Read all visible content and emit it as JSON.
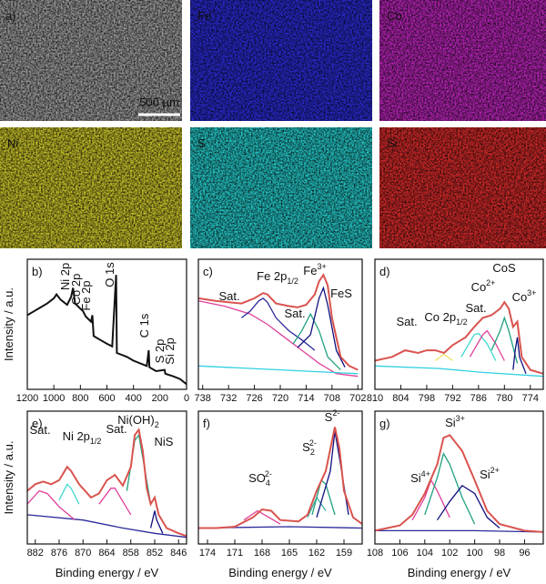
{
  "figure": {
    "panel": "a)",
    "scale_bar": "500 µm",
    "maps": [
      {
        "label": null,
        "color": "#9a9a9a"
      },
      {
        "label": "Fe",
        "color": "#2a2ad0"
      },
      {
        "label": "Co",
        "color": "#b524b5"
      },
      {
        "label": "Ni",
        "color": "#c9c22a"
      },
      {
        "label": "S",
        "color": "#25c4c4"
      },
      {
        "label": "Si",
        "color": "#d42a2a"
      }
    ]
  },
  "chart_data": [
    {
      "type": "line",
      "panel": "b)",
      "ylabel": "Intensity / a.u.",
      "xlim": [
        1200,
        0
      ],
      "ylim": [
        0,
        100
      ],
      "xticks": [
        1200,
        1000,
        800,
        600,
        400,
        200,
        0
      ],
      "annotations": [
        {
          "text": "Ni 2p"
        },
        {
          "text": "Co 2p"
        },
        {
          "text": "Fe 2p"
        },
        {
          "text": "O 1s"
        },
        {
          "text": "C 1s"
        },
        {
          "text": "S 2p"
        },
        {
          "text": "Si 2p"
        }
      ],
      "series": [
        {
          "color": "#111111",
          "x": [
            1200,
            1150,
            1100,
            1050,
            1000,
            980,
            950,
            900,
            870,
            855,
            840,
            800,
            780,
            760,
            720,
            710,
            700,
            650,
            600,
            560,
            531,
            525,
            450,
            400,
            300,
            285,
            280,
            230,
            165,
            160,
            100,
            50,
            0
          ],
          "values": [
            57,
            60,
            63,
            66,
            70,
            73,
            69,
            65,
            71,
            78,
            66,
            62,
            60,
            56,
            52,
            57,
            41,
            38,
            35,
            33,
            88,
            28,
            25,
            22,
            18,
            30,
            17,
            14,
            15,
            12,
            10,
            8,
            4
          ]
        }
      ]
    },
    {
      "type": "line",
      "panel": "c)",
      "xlim": [
        739,
        701
      ],
      "ylim": [
        0,
        100
      ],
      "xticks": [
        738,
        732,
        726,
        720,
        714,
        708,
        702
      ],
      "annotations": [
        {
          "text": "Sat."
        },
        {
          "text": "Fe 2p",
          "sub": "1/2"
        },
        {
          "text": "Sat."
        },
        {
          "text": "Fe",
          "sup": "3+"
        },
        {
          "text": "FeS"
        }
      ],
      "series": [
        {
          "color": "#e0409a",
          "x": [
            739,
            733,
            727,
            723,
            719,
            715,
            711,
            707,
            702
          ],
          "values": [
            68,
            64,
            58,
            50,
            40,
            30,
            20,
            12,
            10
          ]
        },
        {
          "color": "#30d0e0",
          "x": [
            739,
            720,
            702
          ],
          "values": [
            18,
            15,
            12
          ]
        },
        {
          "color": "#2a2a9a",
          "x": [
            729,
            727,
            725,
            724,
            723,
            721,
            718,
            715,
            712
          ],
          "values": [
            55,
            60,
            68,
            70,
            67,
            55,
            45,
            38,
            30
          ]
        },
        {
          "color": "#20a080",
          "x": [
            717,
            715,
            713,
            711,
            709,
            706
          ],
          "values": [
            35,
            45,
            58,
            45,
            25,
            15
          ]
        },
        {
          "color": "#101080",
          "x": [
            716,
            713,
            711,
            710,
            709,
            707,
            705
          ],
          "values": [
            32,
            42,
            70,
            78,
            65,
            30,
            17
          ]
        },
        {
          "color": "#d9534f",
          "x": [
            739,
            735,
            732,
            729,
            726,
            724,
            723,
            721,
            718,
            716,
            714,
            712,
            711,
            710,
            709,
            708,
            706,
            704,
            702
          ],
          "values": [
            70,
            68,
            67,
            66,
            70,
            74,
            73,
            66,
            64,
            63,
            65,
            73,
            83,
            88,
            80,
            55,
            25,
            18,
            15
          ]
        }
      ]
    },
    {
      "type": "line",
      "panel": "d)",
      "xlim": [
        810,
        771
      ],
      "ylim": [
        0,
        100
      ],
      "xticks": [
        810,
        804,
        798,
        792,
        786,
        780,
        774
      ],
      "annotations": [
        {
          "text": "Sat."
        },
        {
          "text": "Co 2p",
          "sub": "1/2"
        },
        {
          "text": "Sat."
        },
        {
          "text": "Co",
          "sup": "2+"
        },
        {
          "text": "CoS"
        },
        {
          "text": "Co",
          "sup": "3+"
        }
      ],
      "series": [
        {
          "color": "#30d0e0",
          "x": [
            810,
            795,
            785,
            771
          ],
          "values": [
            18,
            16,
            13,
            10
          ]
        },
        {
          "color": "#f0e060",
          "x": [
            796,
            794,
            792
          ],
          "values": [
            22,
            27,
            22
          ]
        },
        {
          "color": "#40d8d0",
          "x": [
            790,
            787,
            786,
            784,
            782
          ],
          "values": [
            25,
            42,
            43,
            35,
            22
          ]
        },
        {
          "color": "#e0409a",
          "x": [
            788,
            785,
            784,
            782,
            780
          ],
          "values": [
            25,
            42,
            45,
            35,
            22
          ]
        },
        {
          "color": "#20a080",
          "x": [
            783,
            781,
            780,
            779,
            777
          ],
          "values": [
            30,
            45,
            55,
            45,
            20
          ]
        },
        {
          "color": "#101080",
          "x": [
            778,
            777.5,
            777,
            776.5,
            775
          ],
          "values": [
            15,
            30,
            40,
            25,
            12
          ]
        },
        {
          "color": "#d9534f",
          "x": [
            810,
            806,
            803,
            800,
            798,
            796,
            794,
            792,
            789,
            787,
            785,
            783,
            781,
            780,
            779,
            778,
            777,
            776,
            774,
            771
          ],
          "values": [
            22,
            25,
            30,
            28,
            30,
            30,
            28,
            34,
            40,
            48,
            55,
            57,
            62,
            67,
            62,
            48,
            52,
            25,
            15,
            12
          ]
        }
      ]
    },
    {
      "type": "line",
      "panel": "e)",
      "xlabel": "Binding energy / eV",
      "ylabel": "Intensity / a.u.",
      "xlim": [
        884,
        844
      ],
      "ylim": [
        0,
        100
      ],
      "xticks": [
        882,
        876,
        870,
        864,
        858,
        852,
        846
      ],
      "annotations": [
        {
          "text": "Sat."
        },
        {
          "text": "Ni 2p",
          "sub": "1/2"
        },
        {
          "text": "Sat."
        },
        {
          "text": "Ni(OH)",
          "sub": "2"
        },
        {
          "text": "NiS"
        }
      ],
      "series": [
        {
          "color": "#2a2a9a",
          "x": [
            884,
            870,
            860,
            852,
            844
          ],
          "values": [
            22,
            18,
            12,
            8,
            5
          ]
        },
        {
          "color": "#e0409a",
          "x": [
            884,
            881,
            879,
            876,
            872
          ],
          "values": [
            30,
            40,
            38,
            28,
            18
          ]
        },
        {
          "color": "#40d8d0",
          "x": [
            876,
            874,
            873,
            871
          ],
          "values": [
            33,
            45,
            42,
            30
          ]
        },
        {
          "color": "#e0409a",
          "x": [
            866,
            863,
            862,
            860,
            858
          ],
          "values": [
            30,
            42,
            42,
            32,
            22
          ]
        },
        {
          "color": "#20a080",
          "x": [
            859,
            857,
            856,
            855,
            853
          ],
          "values": [
            40,
            78,
            82,
            65,
            30
          ]
        },
        {
          "color": "#101080",
          "x": [
            853,
            852,
            851.5,
            850
          ],
          "values": [
            12,
            25,
            18,
            8
          ]
        },
        {
          "color": "#d9534f",
          "x": [
            884,
            882,
            880,
            878,
            876,
            874,
            873,
            871,
            868,
            866,
            864,
            862,
            860,
            858,
            857,
            856,
            855,
            854,
            853,
            852,
            851,
            849,
            846,
            844
          ],
          "values": [
            40,
            45,
            47,
            45,
            48,
            58,
            55,
            45,
            35,
            38,
            48,
            52,
            44,
            58,
            82,
            86,
            70,
            42,
            30,
            35,
            22,
            12,
            8,
            6
          ]
        }
      ]
    },
    {
      "type": "line",
      "panel": "f)",
      "xlabel": "Binding energy / eV",
      "xlim": [
        175,
        157
      ],
      "ylim": [
        0,
        100
      ],
      "xticks": [
        174,
        171,
        168,
        165,
        162,
        159
      ],
      "annotations": [
        {
          "text": "SO",
          "sub": "4",
          "sup": "2-"
        },
        {
          "text": "S",
          "sub": "2",
          "sup": "2-"
        },
        {
          "text": "S",
          "sup": "2-"
        }
      ],
      "series": [
        {
          "color": "#2a2a9a",
          "x": [
            175,
            165,
            157
          ],
          "values": [
            12,
            13,
            12
          ]
        },
        {
          "color": "#e0409a",
          "x": [
            170,
            168.5,
            168,
            166
          ],
          "values": [
            18,
            25,
            23,
            15
          ]
        },
        {
          "color": "#40b0a0",
          "x": [
            163,
            162,
            161
          ],
          "values": [
            20,
            35,
            25
          ]
        },
        {
          "color": "#20a080",
          "x": [
            162.5,
            161.5,
            161,
            160
          ],
          "values": [
            22,
            48,
            45,
            22
          ]
        },
        {
          "color": "#101080",
          "x": [
            162,
            160.5,
            160,
            159.5,
            158.5
          ],
          "values": [
            20,
            55,
            85,
            65,
            22
          ]
        },
        {
          "color": "#d9534f",
          "x": [
            175,
            173,
            171,
            169,
            168,
            167,
            166,
            164,
            163,
            162,
            161,
            160,
            159.5,
            159,
            158,
            157
          ],
          "values": [
            12,
            12,
            13,
            20,
            26,
            25,
            18,
            17,
            22,
            40,
            55,
            88,
            72,
            40,
            20,
            15
          ]
        }
      ]
    },
    {
      "type": "line",
      "panel": "g)",
      "xlabel": "Binding energy / eV",
      "xlim": [
        108,
        94.5
      ],
      "ylim": [
        0,
        100
      ],
      "xticks": [
        108,
        106,
        104,
        102,
        100,
        98,
        96
      ],
      "annotations": [
        {
          "text": "Si",
          "sup": "3+"
        },
        {
          "text": "Si",
          "sup": "4+"
        },
        {
          "text": "Si",
          "sup": "2+"
        }
      ],
      "series": [
        {
          "color": "#2a2a9a",
          "x": [
            108,
            100,
            94.5
          ],
          "values": [
            10,
            10,
            9
          ]
        },
        {
          "color": "#e0409a",
          "x": [
            105,
            104,
            103.5,
            103,
            102
          ],
          "values": [
            18,
            35,
            48,
            40,
            20
          ]
        },
        {
          "color": "#20a080",
          "x": [
            104,
            103,
            102.5,
            102,
            101,
            100
          ],
          "values": [
            22,
            50,
            68,
            60,
            35,
            15
          ]
        },
        {
          "color": "#101080",
          "x": [
            103,
            102,
            101,
            100,
            99,
            98
          ],
          "values": [
            18,
            32,
            44,
            38,
            20,
            12
          ]
        },
        {
          "color": "#d9534f",
          "x": [
            108,
            106,
            105,
            104,
            103,
            102.5,
            102,
            101,
            100,
            99,
            98,
            96,
            94.5
          ],
          "values": [
            10,
            14,
            22,
            38,
            60,
            80,
            82,
            70,
            48,
            25,
            15,
            10,
            9
          ]
        }
      ]
    }
  ]
}
